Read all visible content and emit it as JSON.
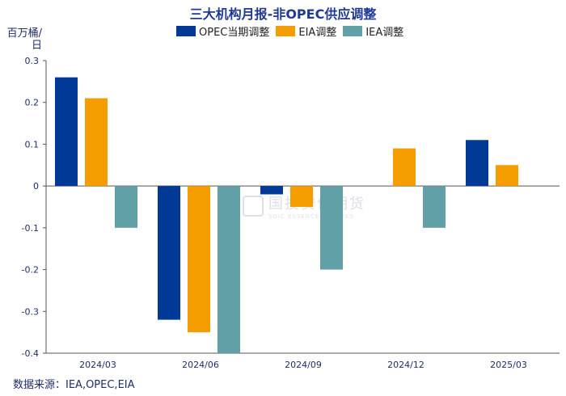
{
  "chart_data": {
    "type": "bar",
    "title": "三大机构月报-非OPEC供应调整",
    "ylabel": "百万桶/日",
    "categories": [
      "2024/03",
      "2024/06",
      "2024/09",
      "2024/12",
      "2025/03"
    ],
    "series": [
      {
        "name": "OPEC当期调整",
        "color": "#003a96",
        "values": [
          0.26,
          -0.32,
          -0.02,
          null,
          0.11
        ]
      },
      {
        "name": "EIA调整",
        "color": "#f59c00",
        "values": [
          0.21,
          -0.35,
          -0.05,
          0.09,
          0.05
        ]
      },
      {
        "name": "IEA调整",
        "color": "#62a0a8",
        "values": [
          -0.1,
          -0.4,
          -0.2,
          -0.1,
          null
        ]
      }
    ],
    "ylim": [
      -0.4,
      0.3
    ],
    "yticks": [
      "0.3",
      "0.2",
      "0.1",
      "0",
      "-0.1",
      "-0.2",
      "-0.3",
      "-0.4"
    ],
    "ytick_values": [
      0.3,
      0.2,
      0.1,
      0,
      -0.1,
      -0.2,
      -0.3,
      -0.4
    ],
    "grid": false,
    "legend_position": "top"
  },
  "source": "数据来源：IEA,OPEC,EIA",
  "watermark": "国投安信期货",
  "watermark_sub": "SDIC ESSENCE FUTURES"
}
